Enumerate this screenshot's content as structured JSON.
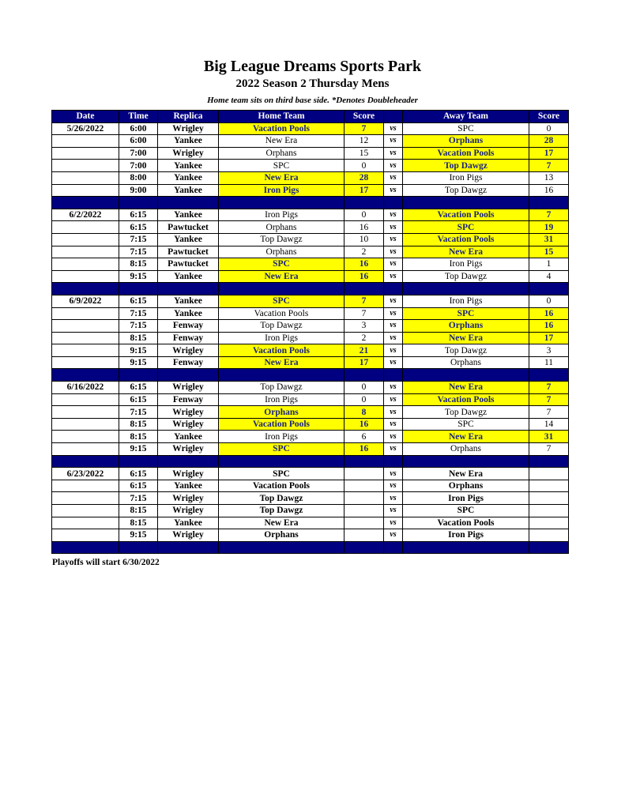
{
  "title": "Big League Dreams Sports Park",
  "subtitle": "2022 Season 2 Thursday Mens",
  "note": "Home team sits on third base side.  *Denotes Doubleheader",
  "colors": {
    "header": "#000080",
    "winner_highlight": "#ffff00"
  },
  "columns": [
    "Date",
    "Time",
    "Replica",
    "Home Team",
    "Score",
    "",
    "Away Team",
    "Score"
  ],
  "vs_label": "vs",
  "weeks": [
    {
      "date": "5/26/2022",
      "games": [
        {
          "time": "6:00",
          "replica": "Wrigley",
          "home": "Vacation Pools",
          "home_score": "7",
          "away": "SPC",
          "away_score": "0",
          "winner": "home"
        },
        {
          "time": "6:00",
          "replica": "Yankee",
          "home": "New Era",
          "home_score": "12",
          "away": "Orphans",
          "away_score": "28",
          "winner": "away"
        },
        {
          "time": "7:00",
          "replica": "Wrigley",
          "home": "Orphans",
          "home_score": "15",
          "away": "Vacation Pools",
          "away_score": "17",
          "winner": "away"
        },
        {
          "time": "7:00",
          "replica": "Yankee",
          "home": "SPC",
          "home_score": "0",
          "away": "Top Dawgz",
          "away_score": "7",
          "winner": "away"
        },
        {
          "time": "8:00",
          "replica": "Yankee",
          "home": "New Era",
          "home_score": "28",
          "away": "Iron Pigs",
          "away_score": "13",
          "winner": "home"
        },
        {
          "time": "9:00",
          "replica": "Yankee",
          "home": "Iron Pigs",
          "home_score": "17",
          "away": "Top Dawgz",
          "away_score": "16",
          "winner": "home"
        }
      ]
    },
    {
      "date": "6/2/2022",
      "games": [
        {
          "time": "6:15",
          "replica": "Yankee",
          "home": "Iron Pigs",
          "home_score": "0",
          "away": "Vacation Pools",
          "away_score": "7",
          "winner": "away"
        },
        {
          "time": "6:15",
          "replica": "Pawtucket",
          "home": "Orphans",
          "home_score": "16",
          "away": "SPC",
          "away_score": "19",
          "winner": "away"
        },
        {
          "time": "7:15",
          "replica": "Yankee",
          "home": "Top Dawgz",
          "home_score": "10",
          "away": "Vacation Pools",
          "away_score": "31",
          "winner": "away"
        },
        {
          "time": "7:15",
          "replica": "Pawtucket",
          "home": "Orphans",
          "home_score": "2",
          "away": "New Era",
          "away_score": "15",
          "winner": "away"
        },
        {
          "time": "8:15",
          "replica": "Pawtucket",
          "home": "SPC",
          "home_score": "16",
          "away": "Iron Pigs",
          "away_score": "1",
          "winner": "home"
        },
        {
          "time": "9:15",
          "replica": "Yankee",
          "home": "New Era",
          "home_score": "16",
          "away": "Top Dawgz",
          "away_score": "4",
          "winner": "home"
        }
      ]
    },
    {
      "date": "6/9/2022",
      "games": [
        {
          "time": "6:15",
          "replica": "Yankee",
          "home": "SPC",
          "home_score": "7",
          "away": "Iron Pigs",
          "away_score": "0",
          "winner": "home"
        },
        {
          "time": "7:15",
          "replica": "Yankee",
          "home": "Vacation Pools",
          "home_score": "7",
          "away": "SPC",
          "away_score": "16",
          "winner": "away"
        },
        {
          "time": "7:15",
          "replica": "Fenway",
          "home": "Top Dawgz",
          "home_score": "3",
          "away": "Orphans",
          "away_score": "16",
          "winner": "away"
        },
        {
          "time": "8:15",
          "replica": "Fenway",
          "home": "Iron Pigs",
          "home_score": "2",
          "away": "New Era",
          "away_score": "17",
          "winner": "away"
        },
        {
          "time": "9:15",
          "replica": "Wrigley",
          "home": "Vacation Pools",
          "home_score": "21",
          "away": "Top Dawgz",
          "away_score": "3",
          "winner": "home"
        },
        {
          "time": "9:15",
          "replica": "Fenway",
          "home": "New Era",
          "home_score": "17",
          "away": "Orphans",
          "away_score": "11",
          "winner": "home"
        }
      ]
    },
    {
      "date": "6/16/2022",
      "games": [
        {
          "time": "6:15",
          "replica": "Wrigley",
          "home": "Top Dawgz",
          "home_score": "0",
          "away": "New Era",
          "away_score": "7",
          "winner": "away"
        },
        {
          "time": "6:15",
          "replica": "Fenway",
          "home": "Iron Pigs",
          "home_score": "0",
          "away": "Vacation Pools",
          "away_score": "7",
          "winner": "away"
        },
        {
          "time": "7:15",
          "replica": "Wrigley",
          "home": "Orphans",
          "home_score": "8",
          "away": "Top Dawgz",
          "away_score": "7",
          "winner": "home"
        },
        {
          "time": "8:15",
          "replica": "Wrigley",
          "home": "Vacation Pools",
          "home_score": "16",
          "away": "SPC",
          "away_score": "14",
          "winner": "home"
        },
        {
          "time": "8:15",
          "replica": "Yankee",
          "home": "Iron Pigs",
          "home_score": "6",
          "away": "New Era",
          "away_score": "31",
          "winner": "away"
        },
        {
          "time": "9:15",
          "replica": "Wrigley",
          "home": "SPC",
          "home_score": "16",
          "away": "Orphans",
          "away_score": "7",
          "winner": "home"
        }
      ]
    },
    {
      "date": "6/23/2022",
      "games": [
        {
          "time": "6:15",
          "replica": "Wrigley",
          "home": "SPC",
          "home_score": "",
          "away": "New Era",
          "away_score": "",
          "winner": ""
        },
        {
          "time": "6:15",
          "replica": "Yankee",
          "home": "Vacation Pools",
          "home_score": "",
          "away": "Orphans",
          "away_score": "",
          "winner": ""
        },
        {
          "time": "7:15",
          "replica": "Wrigley",
          "home": "Top Dawgz",
          "home_score": "",
          "away": "Iron Pigs",
          "away_score": "",
          "winner": ""
        },
        {
          "time": "8:15",
          "replica": "Wrigley",
          "home": "Top Dawgz",
          "home_score": "",
          "away": "SPC",
          "away_score": "",
          "winner": ""
        },
        {
          "time": "8:15",
          "replica": "Yankee",
          "home": "New Era",
          "home_score": "",
          "away": "Vacation Pools",
          "away_score": "",
          "winner": ""
        },
        {
          "time": "9:15",
          "replica": "Wrigley",
          "home": "Orphans",
          "home_score": "",
          "away": "Iron Pigs",
          "away_score": "",
          "winner": ""
        }
      ]
    }
  ],
  "footer": "Playoffs will start 6/30/2022"
}
